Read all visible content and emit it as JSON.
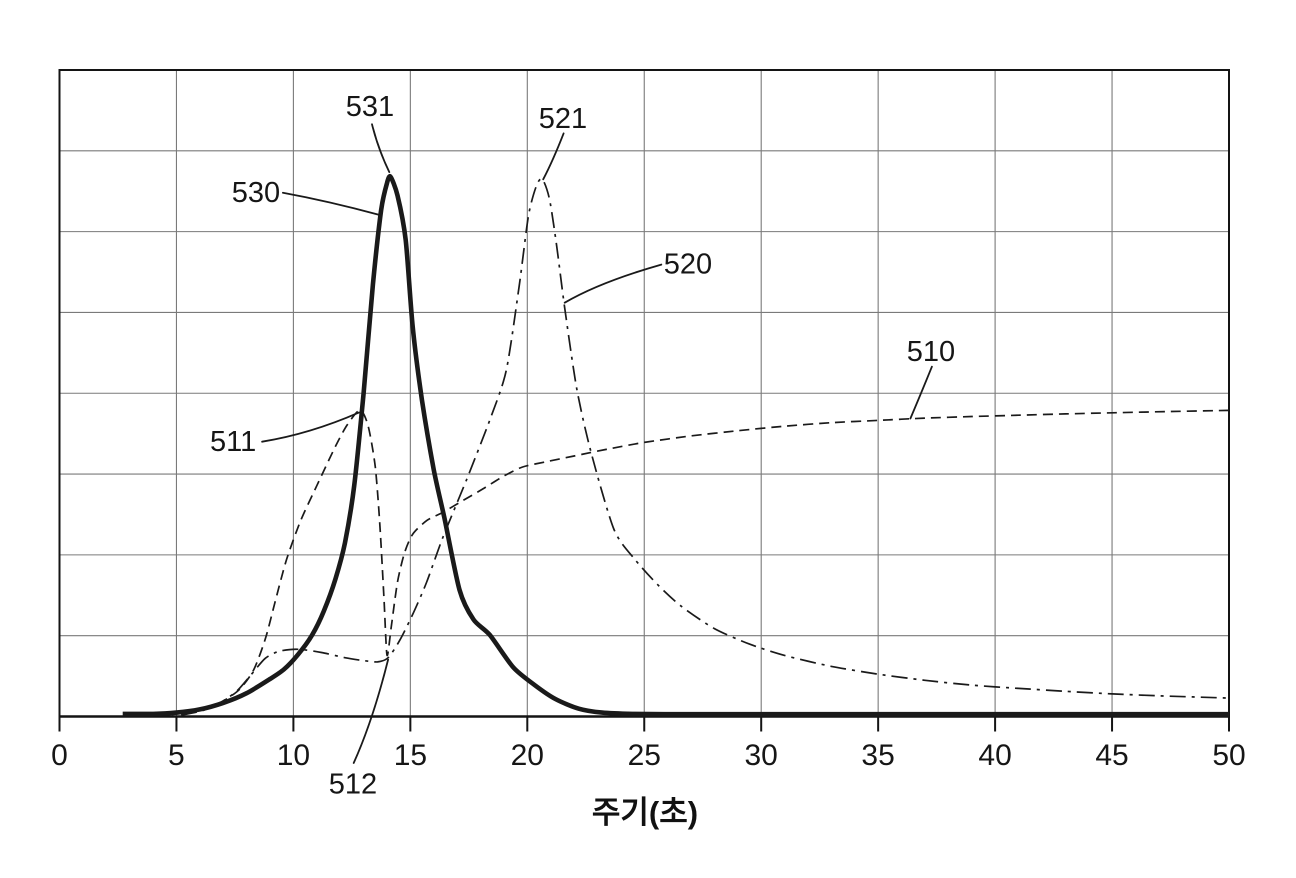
{
  "page": {
    "background": "#ffffff"
  },
  "chart_data": {
    "type": "line",
    "title": "",
    "xlabel": "주기(초)",
    "ylabel": "",
    "xlim": [
      0,
      50
    ],
    "ylim": [
      0,
      1
    ],
    "x_ticks": [
      0,
      5,
      10,
      15,
      20,
      25,
      30,
      35,
      40,
      45,
      50
    ],
    "y_axis_labels_visible": false,
    "grid": true,
    "grid_rows": 8,
    "legend": "none",
    "colors": {
      "line": "#1a1a1a",
      "grid": "#7a7a7a",
      "border": "#141414"
    },
    "series": [
      {
        "name": "510",
        "line_style": "dashed",
        "points": [
          [
            4.8,
            0.003
          ],
          [
            5.6,
            0.007
          ],
          [
            6.3,
            0.013
          ],
          [
            7.0,
            0.024
          ],
          [
            7.7,
            0.042
          ],
          [
            8.3,
            0.072
          ],
          [
            8.8,
            0.12
          ],
          [
            9.2,
            0.175
          ],
          [
            9.7,
            0.242
          ],
          [
            10.3,
            0.302
          ],
          [
            11.0,
            0.357
          ],
          [
            11.8,
            0.418
          ],
          [
            12.3,
            0.451
          ],
          [
            12.85,
            0.474
          ],
          [
            13.2,
            0.449
          ],
          [
            13.5,
            0.386
          ],
          [
            13.7,
            0.295
          ],
          [
            13.87,
            0.185
          ],
          [
            14.0,
            0.095
          ],
          [
            14.18,
            0.138
          ],
          [
            14.45,
            0.208
          ],
          [
            14.75,
            0.253
          ],
          [
            15.1,
            0.282
          ],
          [
            15.7,
            0.303
          ],
          [
            16.4,
            0.316
          ],
          [
            17.2,
            0.333
          ],
          [
            18.1,
            0.352
          ],
          [
            19.0,
            0.372
          ],
          [
            19.8,
            0.386
          ],
          [
            20.8,
            0.394
          ],
          [
            22.0,
            0.403
          ],
          [
            23.5,
            0.414
          ],
          [
            25.0,
            0.424
          ],
          [
            27.0,
            0.434
          ],
          [
            29.0,
            0.442
          ],
          [
            31.0,
            0.449
          ],
          [
            33.0,
            0.4545
          ],
          [
            35.0,
            0.458
          ],
          [
            37.0,
            0.4615
          ],
          [
            39.0,
            0.464
          ],
          [
            41.0,
            0.466
          ],
          [
            43.0,
            0.468
          ],
          [
            45.0,
            0.4698
          ],
          [
            47.5,
            0.4718
          ],
          [
            50.0,
            0.4735
          ]
        ]
      },
      {
        "name": "520",
        "line_style": "dashdot",
        "points": [
          [
            5.2,
            0.002
          ],
          [
            6.1,
            0.009
          ],
          [
            6.9,
            0.022
          ],
          [
            7.6,
            0.04
          ],
          [
            8.2,
            0.065
          ],
          [
            8.8,
            0.09
          ],
          [
            9.4,
            0.101
          ],
          [
            10.2,
            0.104
          ],
          [
            11.2,
            0.099
          ],
          [
            12.2,
            0.091
          ],
          [
            13.0,
            0.0865
          ],
          [
            13.6,
            0.0845
          ],
          [
            14.05,
            0.091
          ],
          [
            14.55,
            0.118
          ],
          [
            15.1,
            0.158
          ],
          [
            15.7,
            0.208
          ],
          [
            16.4,
            0.278
          ],
          [
            17.4,
            0.366
          ],
          [
            18.4,
            0.459
          ],
          [
            19.1,
            0.535
          ],
          [
            19.65,
            0.665
          ],
          [
            20.05,
            0.775
          ],
          [
            20.4,
            0.822
          ],
          [
            20.65,
            0.831
          ],
          [
            20.95,
            0.8
          ],
          [
            21.25,
            0.73
          ],
          [
            21.6,
            0.632
          ],
          [
            22.1,
            0.51
          ],
          [
            22.7,
            0.412
          ],
          [
            23.7,
            0.29
          ],
          [
            24.6,
            0.243
          ],
          [
            25.6,
            0.203
          ],
          [
            26.6,
            0.17
          ],
          [
            28.0,
            0.136
          ],
          [
            29.5,
            0.112
          ],
          [
            31.0,
            0.0945
          ],
          [
            33.0,
            0.0775
          ],
          [
            35.0,
            0.0655
          ],
          [
            37.0,
            0.056
          ],
          [
            39.0,
            0.0485
          ],
          [
            41.0,
            0.0435
          ],
          [
            43.0,
            0.039
          ],
          [
            45.0,
            0.035
          ],
          [
            47.0,
            0.032
          ],
          [
            50.0,
            0.0285
          ]
        ]
      },
      {
        "name": "530",
        "line_style": "solid-thick",
        "points": [
          [
            2.7,
            0.004
          ],
          [
            4.0,
            0.004
          ],
          [
            5.0,
            0.006
          ],
          [
            6.0,
            0.011
          ],
          [
            7.0,
            0.021
          ],
          [
            8.0,
            0.036
          ],
          [
            9.0,
            0.058
          ],
          [
            9.6,
            0.073
          ],
          [
            10.2,
            0.096
          ],
          [
            10.8,
            0.126
          ],
          [
            11.3,
            0.163
          ],
          [
            11.8,
            0.213
          ],
          [
            12.2,
            0.268
          ],
          [
            12.6,
            0.357
          ],
          [
            13.0,
            0.5
          ],
          [
            13.4,
            0.668
          ],
          [
            13.75,
            0.783
          ],
          [
            14.0,
            0.825
          ],
          [
            14.15,
            0.835
          ],
          [
            14.45,
            0.806
          ],
          [
            14.8,
            0.737
          ],
          [
            15.1,
            0.603
          ],
          [
            15.5,
            0.489
          ],
          [
            16.0,
            0.382
          ],
          [
            16.45,
            0.308
          ],
          [
            17.1,
            0.196
          ],
          [
            17.7,
            0.15
          ],
          [
            18.4,
            0.126
          ],
          [
            19.4,
            0.076
          ],
          [
            20.3,
            0.049
          ],
          [
            21.2,
            0.027
          ],
          [
            22.2,
            0.012
          ],
          [
            23.2,
            0.006
          ],
          [
            24.5,
            0.004
          ],
          [
            27.0,
            0.0035
          ],
          [
            30.0,
            0.0035
          ],
          [
            35.0,
            0.0035
          ],
          [
            40.0,
            0.0035
          ],
          [
            45.0,
            0.0035
          ],
          [
            50.0,
            0.0035
          ]
        ]
      }
    ],
    "annotations": [
      {
        "label": "531",
        "text_xy": [
          13.27,
          0.944
        ],
        "leader": [
          [
            13.36,
            0.916
          ],
          [
            13.62,
            0.878
          ],
          [
            14.1,
            0.842
          ]
        ]
      },
      {
        "label": "521",
        "text_xy": [
          21.52,
          0.926
        ],
        "leader": [
          [
            21.55,
            0.902
          ],
          [
            21.1,
            0.86
          ],
          [
            20.68,
            0.831
          ]
        ]
      },
      {
        "label": "530",
        "text_xy": [
          8.4,
          0.811
        ],
        "leader": [
          [
            9.55,
            0.81
          ],
          [
            11.5,
            0.797
          ],
          [
            13.65,
            0.776
          ]
        ]
      },
      {
        "label": "520",
        "text_xy": [
          26.87,
          0.701
        ],
        "leader": [
          [
            25.73,
            0.699
          ],
          [
            23.1,
            0.672
          ],
          [
            21.6,
            0.64
          ]
        ]
      },
      {
        "label": "511",
        "text_xy": [
          7.42,
          0.426
        ],
        "leader": [
          [
            8.66,
            0.425
          ],
          [
            10.7,
            0.437
          ],
          [
            12.8,
            0.47
          ]
        ]
      },
      {
        "label": "510",
        "text_xy": [
          37.26,
          0.565
        ],
        "leader": [
          [
            37.3,
            0.541
          ],
          [
            36.8,
            0.497
          ],
          [
            36.38,
            0.461
          ]
        ]
      },
      {
        "label": "512",
        "text_xy": [
          12.55,
          -0.104
        ],
        "leader": [
          [
            12.58,
            -0.072
          ],
          [
            13.4,
            -0.006
          ],
          [
            14.05,
            0.088
          ]
        ]
      }
    ]
  }
}
